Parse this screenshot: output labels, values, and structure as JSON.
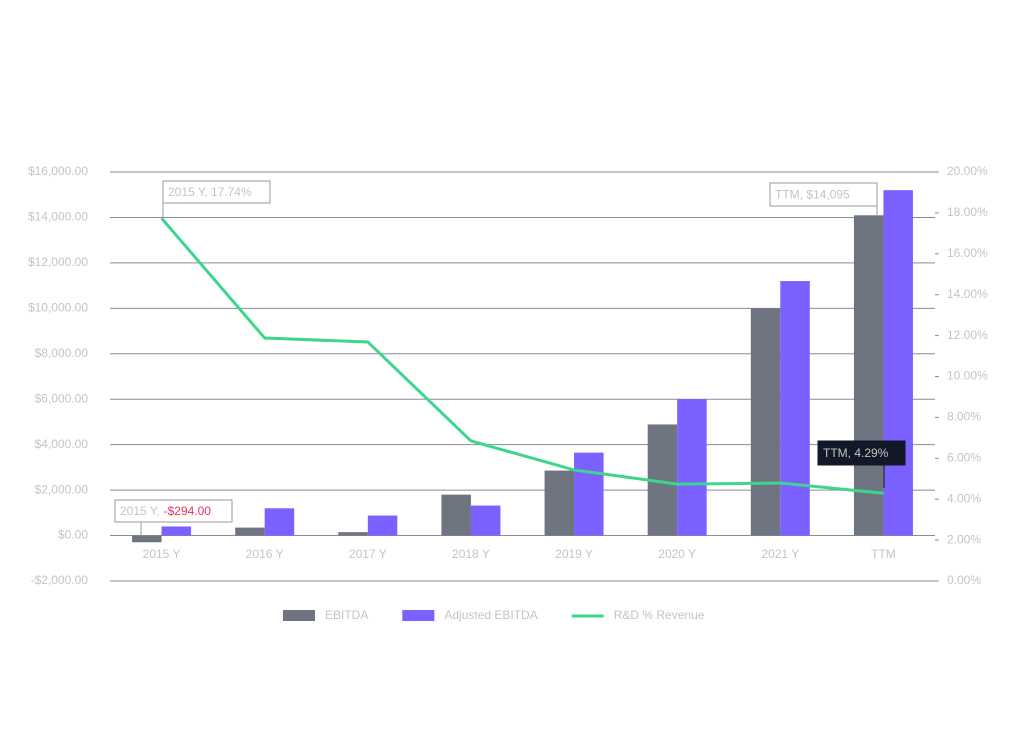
{
  "chart_data": {
    "type": "bar-line",
    "categories": [
      "2015 Y",
      "2016 Y",
      "2017 Y",
      "2018 Y",
      "2019 Y",
      "2020 Y",
      "2021 Y",
      "TTM"
    ],
    "series": [
      {
        "name": "EBITDA",
        "type": "bar",
        "color": "#6e7480",
        "values": [
          -294,
          350,
          150,
          1800,
          2860,
          4890,
          10000,
          14095
        ]
      },
      {
        "name": "Adjusted EBITDA",
        "type": "bar",
        "color": "#7b61ff",
        "values": [
          400,
          1200,
          880,
          1320,
          3650,
          6000,
          11200,
          15200
        ]
      },
      {
        "name": "R&D % Revenue",
        "type": "line",
        "axis": "y2",
        "color": "#3dd68c",
        "values": [
          17.74,
          11.88,
          11.69,
          6.85,
          5.43,
          4.74,
          4.79,
          4.29
        ]
      }
    ],
    "ylim": [
      -2000,
      16000
    ],
    "yticks": [
      {
        "value": -2000,
        "label": "-$2,000.00"
      },
      {
        "value": 0,
        "label": "$0.00"
      },
      {
        "value": 2000,
        "label": "$2,000.00"
      },
      {
        "value": 4000,
        "label": "$4,000.00"
      },
      {
        "value": 6000,
        "label": "$6,000.00"
      },
      {
        "value": 8000,
        "label": "$8,000.00"
      },
      {
        "value": 10000,
        "label": "$10,000.00"
      },
      {
        "value": 12000,
        "label": "$12,000.00"
      },
      {
        "value": 14000,
        "label": "$14,000.00"
      },
      {
        "value": 16000,
        "label": "$16,000.00"
      }
    ],
    "y2lim": [
      0,
      20
    ],
    "y2ticks": [
      {
        "value": 0,
        "label": "0.00%"
      },
      {
        "value": 2,
        "label": "2.00%"
      },
      {
        "value": 4,
        "label": "4.00%"
      },
      {
        "value": 6,
        "label": "6.00%"
      },
      {
        "value": 8,
        "label": "8.00%"
      },
      {
        "value": 10,
        "label": "10.00%"
      },
      {
        "value": 12,
        "label": "12.00%"
      },
      {
        "value": 14,
        "label": "14.00%"
      },
      {
        "value": 16,
        "label": "16.00%"
      },
      {
        "value": 18,
        "label": "18.00%"
      },
      {
        "value": 20,
        "label": "20.00%"
      }
    ],
    "grid": true,
    "legend": "bottom",
    "annotations": [
      {
        "text": "2015 Y, 17.74%"
      },
      {
        "text": "TTM, $14,095"
      },
      {
        "text": "TTM, 4.29%"
      },
      {
        "text": "2015 Y,",
        "value_text": "-$294.00"
      }
    ]
  }
}
